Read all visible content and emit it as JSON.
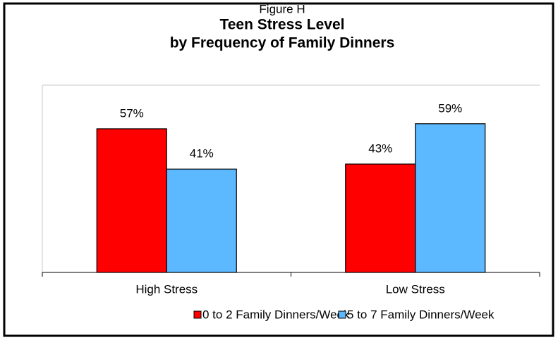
{
  "chart_data": {
    "type": "bar",
    "label": "Figure H",
    "title": "Teen Stress Level",
    "subtitle": "by Frequency of Family Dinners",
    "categories": [
      "High Stress",
      "Low Stress"
    ],
    "series": [
      {
        "name": "0 to 2 Family Dinners/Week",
        "color": "#ff0000",
        "values": [
          57,
          43
        ],
        "value_labels": [
          "57%",
          "43%"
        ]
      },
      {
        "name": "5 to 7 Family Dinners/Week",
        "color": "#5cb8ff",
        "values": [
          41,
          59
        ],
        "value_labels": [
          "41%",
          "59%"
        ]
      }
    ],
    "legend": "bottom"
  }
}
